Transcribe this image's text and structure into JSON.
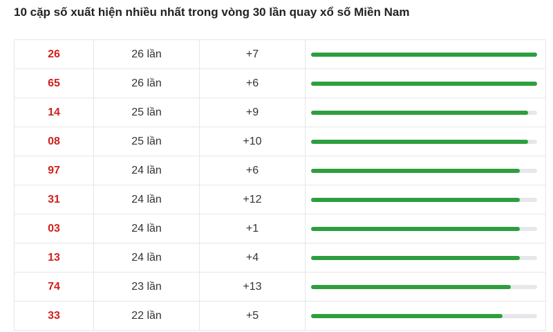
{
  "title": "10 cặp số xuất hiện nhiều nhất trong vòng 30 lần quay xổ số Miền Nam",
  "rows": [
    {
      "number": "26",
      "count": 26,
      "count_label": "26 lần",
      "change": "+7"
    },
    {
      "number": "65",
      "count": 26,
      "count_label": "26 lần",
      "change": "+6"
    },
    {
      "number": "14",
      "count": 25,
      "count_label": "25 lần",
      "change": "+9"
    },
    {
      "number": "08",
      "count": 25,
      "count_label": "25 lần",
      "change": "+10"
    },
    {
      "number": "97",
      "count": 24,
      "count_label": "24 lần",
      "change": "+6"
    },
    {
      "number": "31",
      "count": 24,
      "count_label": "24 lần",
      "change": "+12"
    },
    {
      "number": "03",
      "count": 24,
      "count_label": "24 lần",
      "change": "+1"
    },
    {
      "number": "13",
      "count": 24,
      "count_label": "24 lần",
      "change": "+4"
    },
    {
      "number": "74",
      "count": 23,
      "count_label": "23 lần",
      "change": "+13"
    },
    {
      "number": "33",
      "count": 22,
      "count_label": "22 lần",
      "change": "+5"
    }
  ],
  "bar_color": "#2e9e3e"
}
